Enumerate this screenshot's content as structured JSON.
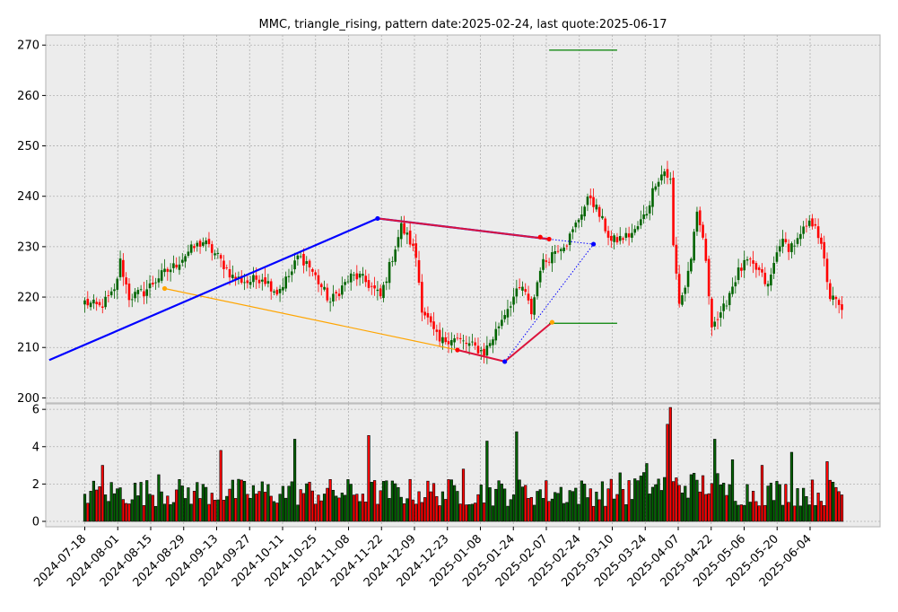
{
  "chart_data": {
    "type": "candlestick",
    "title": "MMC, triangle_rising, pattern date:2025-02-24, last quote:2025-06-17",
    "price_axis": {
      "ylim": [
        199,
        272
      ],
      "ticks": [
        200,
        210,
        220,
        230,
        240,
        250,
        260,
        270
      ]
    },
    "volume_axis": {
      "ylim": [
        0,
        6.2
      ],
      "ticks": [
        0,
        2,
        4,
        6
      ]
    },
    "x_ticks": [
      "2024-07-18",
      "2024-08-01",
      "2024-08-15",
      "2024-08-29",
      "2024-09-13",
      "2024-09-27",
      "2024-10-11",
      "2024-10-25",
      "2024-11-08",
      "2024-11-22",
      "2024-12-09",
      "2024-12-23",
      "2025-01-08",
      "2025-01-24",
      "2025-02-07",
      "2025-02-24",
      "2025-03-10",
      "2025-03-24",
      "2025-04-07",
      "2025-04-22",
      "2025-05-06",
      "2025-05-20",
      "2025-06-04"
    ],
    "grid": true,
    "candle_colors": {
      "up": "#006400",
      "down": "#ff0000"
    },
    "price_anchors": [
      [
        0,
        219
      ],
      [
        5,
        218
      ],
      [
        10,
        221
      ],
      [
        12,
        227
      ],
      [
        15,
        220
      ],
      [
        20,
        221
      ],
      [
        25,
        224
      ],
      [
        30,
        226
      ],
      [
        35,
        229
      ],
      [
        40,
        231
      ],
      [
        45,
        228
      ],
      [
        50,
        224
      ],
      [
        55,
        223
      ],
      [
        60,
        224
      ],
      [
        65,
        221
      ],
      [
        70,
        225
      ],
      [
        72,
        228
      ],
      [
        75,
        227
      ],
      [
        80,
        222
      ],
      [
        83,
        219
      ],
      [
        87,
        222
      ],
      [
        90,
        224
      ],
      [
        93,
        224
      ],
      [
        97,
        222
      ],
      [
        100,
        220
      ],
      [
        104,
        228
      ],
      [
        107,
        234
      ],
      [
        110,
        231
      ],
      [
        112,
        228
      ],
      [
        114,
        218
      ],
      [
        118,
        213
      ],
      [
        120,
        211
      ],
      [
        124,
        212
      ],
      [
        128,
        211
      ],
      [
        132,
        210
      ],
      [
        135,
        209
      ],
      [
        138,
        212
      ],
      [
        142,
        217
      ],
      [
        145,
        220
      ],
      [
        148,
        222
      ],
      [
        151,
        217
      ],
      [
        154,
        226
      ],
      [
        157,
        228
      ],
      [
        160,
        230
      ],
      [
        163,
        231
      ],
      [
        165,
        233
      ],
      [
        168,
        237
      ],
      [
        171,
        240
      ],
      [
        175,
        235
      ],
      [
        178,
        231
      ],
      [
        183,
        232
      ],
      [
        186,
        233
      ],
      [
        190,
        237
      ],
      [
        193,
        243
      ],
      [
        196,
        245
      ],
      [
        198,
        243
      ],
      [
        199,
        230
      ],
      [
        201,
        219
      ],
      [
        203,
        222
      ],
      [
        205,
        228
      ],
      [
        207,
        236
      ],
      [
        209,
        232
      ],
      [
        212,
        215
      ],
      [
        215,
        216
      ],
      [
        218,
        221
      ],
      [
        221,
        225
      ],
      [
        224,
        227
      ],
      [
        228,
        225
      ],
      [
        231,
        222
      ],
      [
        235,
        231
      ],
      [
        238,
        230
      ],
      [
        241,
        231
      ],
      [
        244,
        234
      ],
      [
        247,
        235
      ],
      [
        250,
        227
      ],
      [
        252,
        220
      ],
      [
        254,
        219
      ],
      [
        256,
        217
      ]
    ],
    "volume_peaks": [
      [
        6,
        3.0
      ],
      [
        25,
        2.5
      ],
      [
        46,
        3.8
      ],
      [
        71,
        4.4
      ],
      [
        96,
        4.6
      ],
      [
        128,
        2.8
      ],
      [
        136,
        4.3
      ],
      [
        146,
        4.8
      ],
      [
        181,
        2.6
      ],
      [
        190,
        3.1
      ],
      [
        197,
        5.2
      ],
      [
        198,
        6.1
      ],
      [
        213,
        4.4
      ],
      [
        219,
        3.3
      ],
      [
        229,
        3.0
      ],
      [
        239,
        3.7
      ],
      [
        251,
        3.2
      ]
    ],
    "annotations": {
      "blue_line": [
        [
          -12,
          207.5
        ],
        [
          99,
          235.6
        ],
        [
          157,
          231.5
        ]
      ],
      "blue_dotted": [
        [
          157,
          231.5
        ],
        [
          172,
          230.5
        ],
        [
          142,
          207.2
        ]
      ],
      "orange_line": [
        [
          27,
          221.7
        ],
        [
          126,
          209.5
        ],
        [
          142,
          207.2
        ],
        [
          158,
          215
        ]
      ],
      "red_segments": [
        [
          [
            99,
            235.6
          ],
          [
            157,
            231.5
          ]
        ],
        [
          [
            126,
            209.5
          ],
          [
            142,
            207.2
          ],
          [
            158,
            215
          ]
        ]
      ],
      "green_levels": [
        {
          "y": 269,
          "x0": 157,
          "x1": 180
        },
        {
          "y": 214.8,
          "x0": 157,
          "x1": 180
        }
      ]
    }
  }
}
